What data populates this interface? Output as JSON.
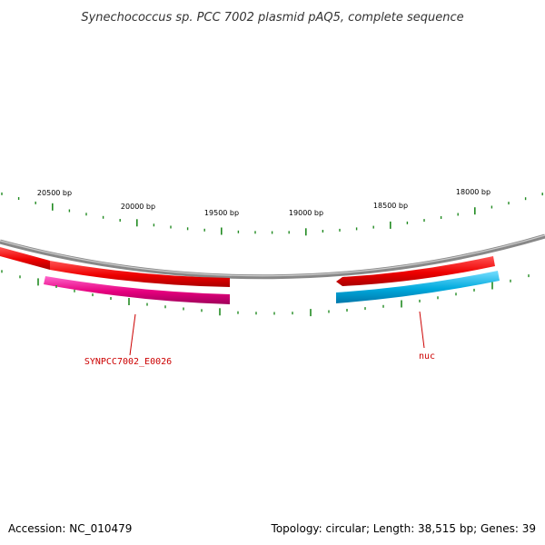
{
  "title": "Synechococcus sp. PCC 7002 plasmid pAQ5, complete sequence",
  "footer": {
    "accession": "Accession: NC_010479",
    "summary": "Topology: circular; Length: 38,515 bp; Genes: 39"
  },
  "scale": {
    "tick_labels": [
      "20500 bp",
      "20000 bp",
      "19500 bp",
      "19000 bp",
      "18500 bp",
      "18000 bp"
    ]
  },
  "genes": {
    "labels": [
      {
        "name": "SYNPCC7002_E0026",
        "color": "#cc0000"
      },
      {
        "name": "nuc",
        "color": "#cc0000"
      }
    ]
  },
  "colors": {
    "backbone": "#888888",
    "cds": "#ff0000",
    "gene_pink": "#e6007e",
    "gene_cyan": "#00aadd",
    "tick": "#228b22"
  }
}
